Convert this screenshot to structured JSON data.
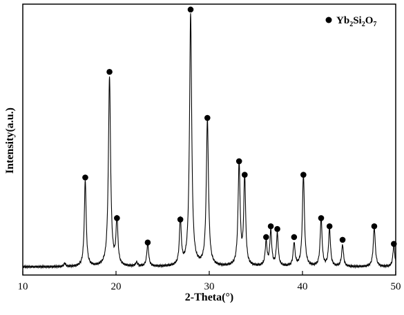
{
  "chart_data": {
    "type": "line",
    "title": "",
    "xlabel": "2-Theta(°)",
    "ylabel": "Intensity(a.u.)",
    "xlim": [
      10,
      50
    ],
    "ylim": [
      0,
      100
    ],
    "x_ticks": [
      10,
      20,
      30,
      40,
      50
    ],
    "y_ticks_shown": false,
    "grid": false,
    "legend_position": "top-right",
    "series": [
      {
        "name": "Yb2Si2O7",
        "legend_parts": [
          {
            "text": "Yb",
            "sub": false
          },
          {
            "text": "2",
            "sub": true
          },
          {
            "text": "Si",
            "sub": false
          },
          {
            "text": "2",
            "sub": true
          },
          {
            "text": "O",
            "sub": false
          },
          {
            "text": "7",
            "sub": true
          }
        ],
        "marker": "filled-circle",
        "color": "#000000",
        "baseline": 3,
        "peaks": [
          {
            "x": 14.5,
            "h": 1.2,
            "w": 0.12
          },
          {
            "x": 16.7,
            "h": 32,
            "w": 0.12
          },
          {
            "x": 19.3,
            "h": 70,
            "w": 0.14
          },
          {
            "x": 20.1,
            "h": 17,
            "w": 0.12
          },
          {
            "x": 22.2,
            "h": 1.5,
            "w": 0.12
          },
          {
            "x": 23.4,
            "h": 8.5,
            "w": 0.12
          },
          {
            "x": 26.9,
            "h": 17,
            "w": 0.12
          },
          {
            "x": 28.0,
            "h": 93,
            "w": 0.14
          },
          {
            "x": 29.8,
            "h": 54,
            "w": 0.14
          },
          {
            "x": 33.2,
            "h": 38,
            "w": 0.13
          },
          {
            "x": 33.8,
            "h": 33,
            "w": 0.12
          },
          {
            "x": 36.1,
            "h": 9,
            "w": 0.12
          },
          {
            "x": 36.6,
            "h": 13,
            "w": 0.12
          },
          {
            "x": 37.3,
            "h": 12,
            "w": 0.12
          },
          {
            "x": 39.1,
            "h": 8.5,
            "w": 0.12
          },
          {
            "x": 40.1,
            "h": 34,
            "w": 0.13
          },
          {
            "x": 42.0,
            "h": 18,
            "w": 0.12
          },
          {
            "x": 42.9,
            "h": 14,
            "w": 0.12
          },
          {
            "x": 44.3,
            "h": 8,
            "w": 0.12
          },
          {
            "x": 47.7,
            "h": 14.5,
            "w": 0.13
          },
          {
            "x": 49.8,
            "h": 8,
            "w": 0.12
          }
        ],
        "markers": [
          {
            "x": 16.7,
            "y": 36
          },
          {
            "x": 19.3,
            "y": 75
          },
          {
            "x": 20.1,
            "y": 21
          },
          {
            "x": 23.4,
            "y": 12
          },
          {
            "x": 26.9,
            "y": 20.5
          },
          {
            "x": 28.0,
            "y": 98
          },
          {
            "x": 29.8,
            "y": 58
          },
          {
            "x": 33.2,
            "y": 42
          },
          {
            "x": 33.8,
            "y": 37
          },
          {
            "x": 36.1,
            "y": 14
          },
          {
            "x": 36.6,
            "y": 18
          },
          {
            "x": 37.3,
            "y": 17
          },
          {
            "x": 39.1,
            "y": 14
          },
          {
            "x": 40.1,
            "y": 37
          },
          {
            "x": 42.0,
            "y": 21
          },
          {
            "x": 42.9,
            "y": 18
          },
          {
            "x": 44.3,
            "y": 13
          },
          {
            "x": 47.7,
            "y": 18
          },
          {
            "x": 49.8,
            "y": 11.5
          }
        ]
      }
    ]
  }
}
